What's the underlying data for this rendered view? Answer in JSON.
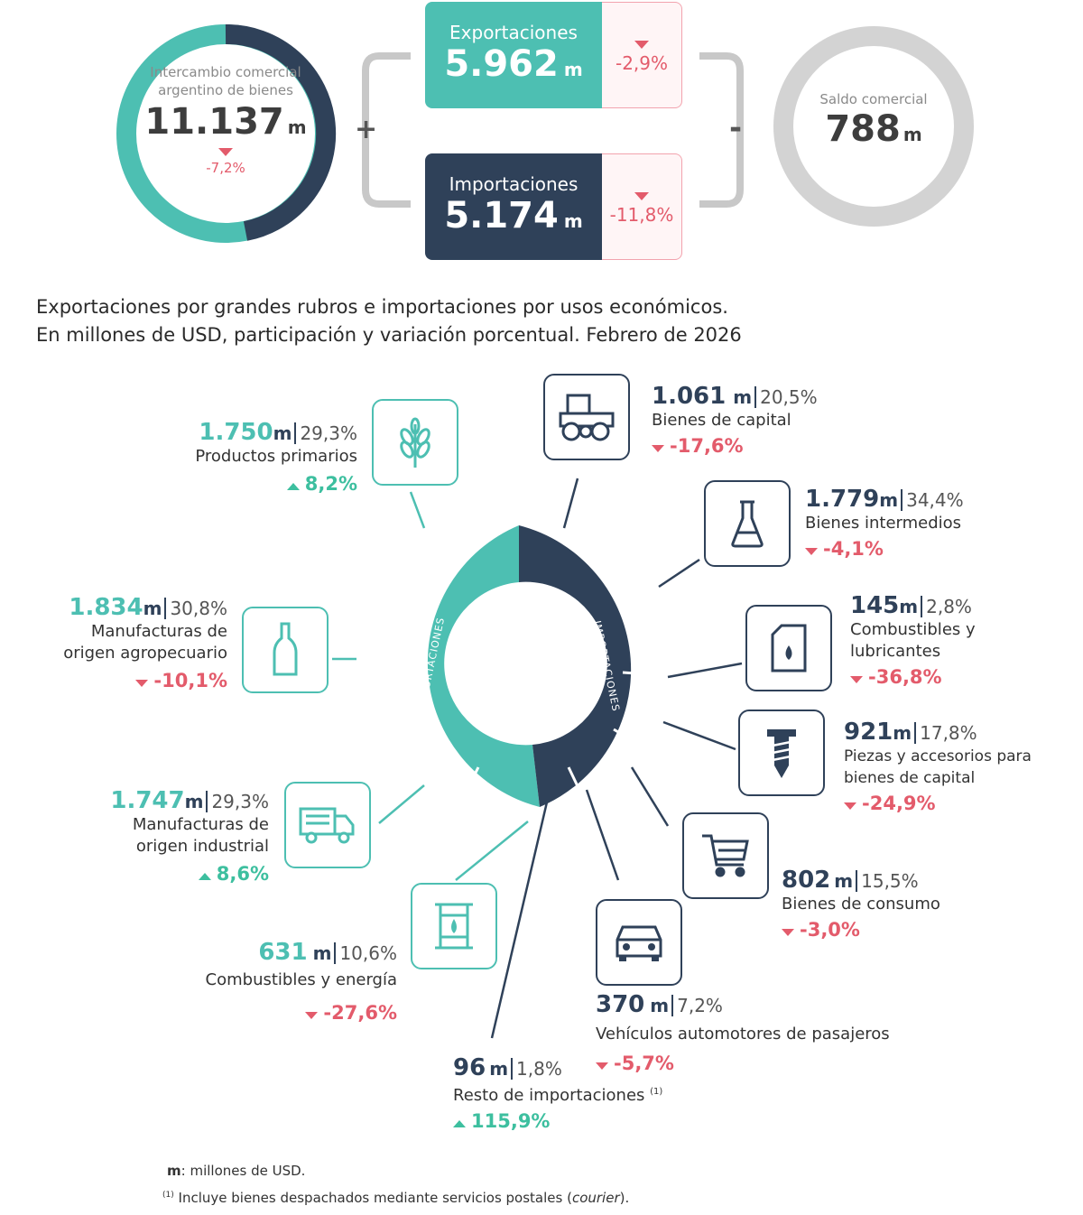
{
  "summary": {
    "intercambio": {
      "label": "Intercambio comercial argentino de bienes",
      "value": "11.137",
      "unit": "m",
      "var": "-7,2%"
    },
    "exportaciones": {
      "label": "Exportaciones",
      "value": "5.962",
      "unit": "m",
      "var": "-2,9%"
    },
    "importaciones": {
      "label": "Importaciones",
      "value": "5.174",
      "unit": "m",
      "var": "-11,8%"
    },
    "saldo": {
      "label": "Saldo comercial",
      "value": "788",
      "unit": "m"
    },
    "plus": "+",
    "minus": "-"
  },
  "title": {
    "line1": "Exportaciones por grandes rubros e importaciones por usos económicos.",
    "line2": "En millones de USD, participación y variación porcentual. Febrero de 2026"
  },
  "donut": {
    "exp_label": "EXPORTACIONES",
    "imp_label": "IMPORTACIONES",
    "exp_share": 0.535
  },
  "exports": [
    {
      "value": "1.750",
      "unit": "m",
      "share": "29,3%",
      "name": "Productos primarios",
      "var": "8,2%",
      "dir": "up",
      "icon": "wheat-icon"
    },
    {
      "value": "1.834",
      "unit": "m",
      "share": "30,8%",
      "name1": "Manufacturas de",
      "name2": "origen agropecuario",
      "var": "-10,1%",
      "dir": "down",
      "icon": "bottle-icon"
    },
    {
      "value": "1.747",
      "unit": "m",
      "share": "29,3%",
      "name1": "Manufacturas de",
      "name2": "origen industrial",
      "var": "8,6%",
      "dir": "up",
      "icon": "truck-icon"
    },
    {
      "value": "631",
      "unit": "m",
      "share": "10,6%",
      "name": "Combustibles y energía",
      "var": "-27,6%",
      "dir": "down",
      "icon": "oil-barrel-icon"
    }
  ],
  "imports": [
    {
      "value": "1.061",
      "unit": "m",
      "share": "20,5%",
      "name": "Bienes de capital",
      "var": "-17,6%",
      "dir": "down",
      "icon": "tractor-icon"
    },
    {
      "value": "1.779",
      "unit": "m",
      "share": "34,4%",
      "name": "Bienes intermedios",
      "var": "-4,1%",
      "dir": "down",
      "icon": "flask-icon"
    },
    {
      "value": "145",
      "unit": "m",
      "share": "2,8%",
      "name1": "Combustibles y",
      "name2": "lubricantes",
      "var": "-36,8%",
      "dir": "down",
      "icon": "jerrycan-icon"
    },
    {
      "value": "921",
      "unit": "m",
      "share": "17,8%",
      "name1": "Piezas y accesorios para",
      "name2": "bienes de capital",
      "var": "-24,9%",
      "dir": "down",
      "icon": "screw-icon"
    },
    {
      "value": "802",
      "unit": "m",
      "share": "15,5%",
      "name": "Bienes de consumo",
      "var": "-3,0%",
      "dir": "down",
      "icon": "cart-icon"
    },
    {
      "value": "370",
      "unit": "m",
      "share": "7,2%",
      "name": "Vehículos automotores de pasajeros",
      "var": "-5,7%",
      "dir": "down",
      "icon": "car-icon"
    },
    {
      "value": "96",
      "unit": "m",
      "share": "1,8%",
      "name": "Resto de importaciones",
      "sup": "(1)",
      "var": "115,9%",
      "dir": "up"
    }
  ],
  "notes": {
    "m_key": "m",
    "m_text": ": millones de USD.",
    "n1_sup": "(1)",
    "n1_text": "Incluye bienes despachados mediante servicios postales (",
    "n1_italic": "courier",
    "n1_end": ")."
  },
  "colors": {
    "teal": "#4dbfb2",
    "navy": "#2f4159",
    "red": "#e35b6b",
    "green": "#3dbf9f",
    "gray": "#d3d3d3"
  }
}
